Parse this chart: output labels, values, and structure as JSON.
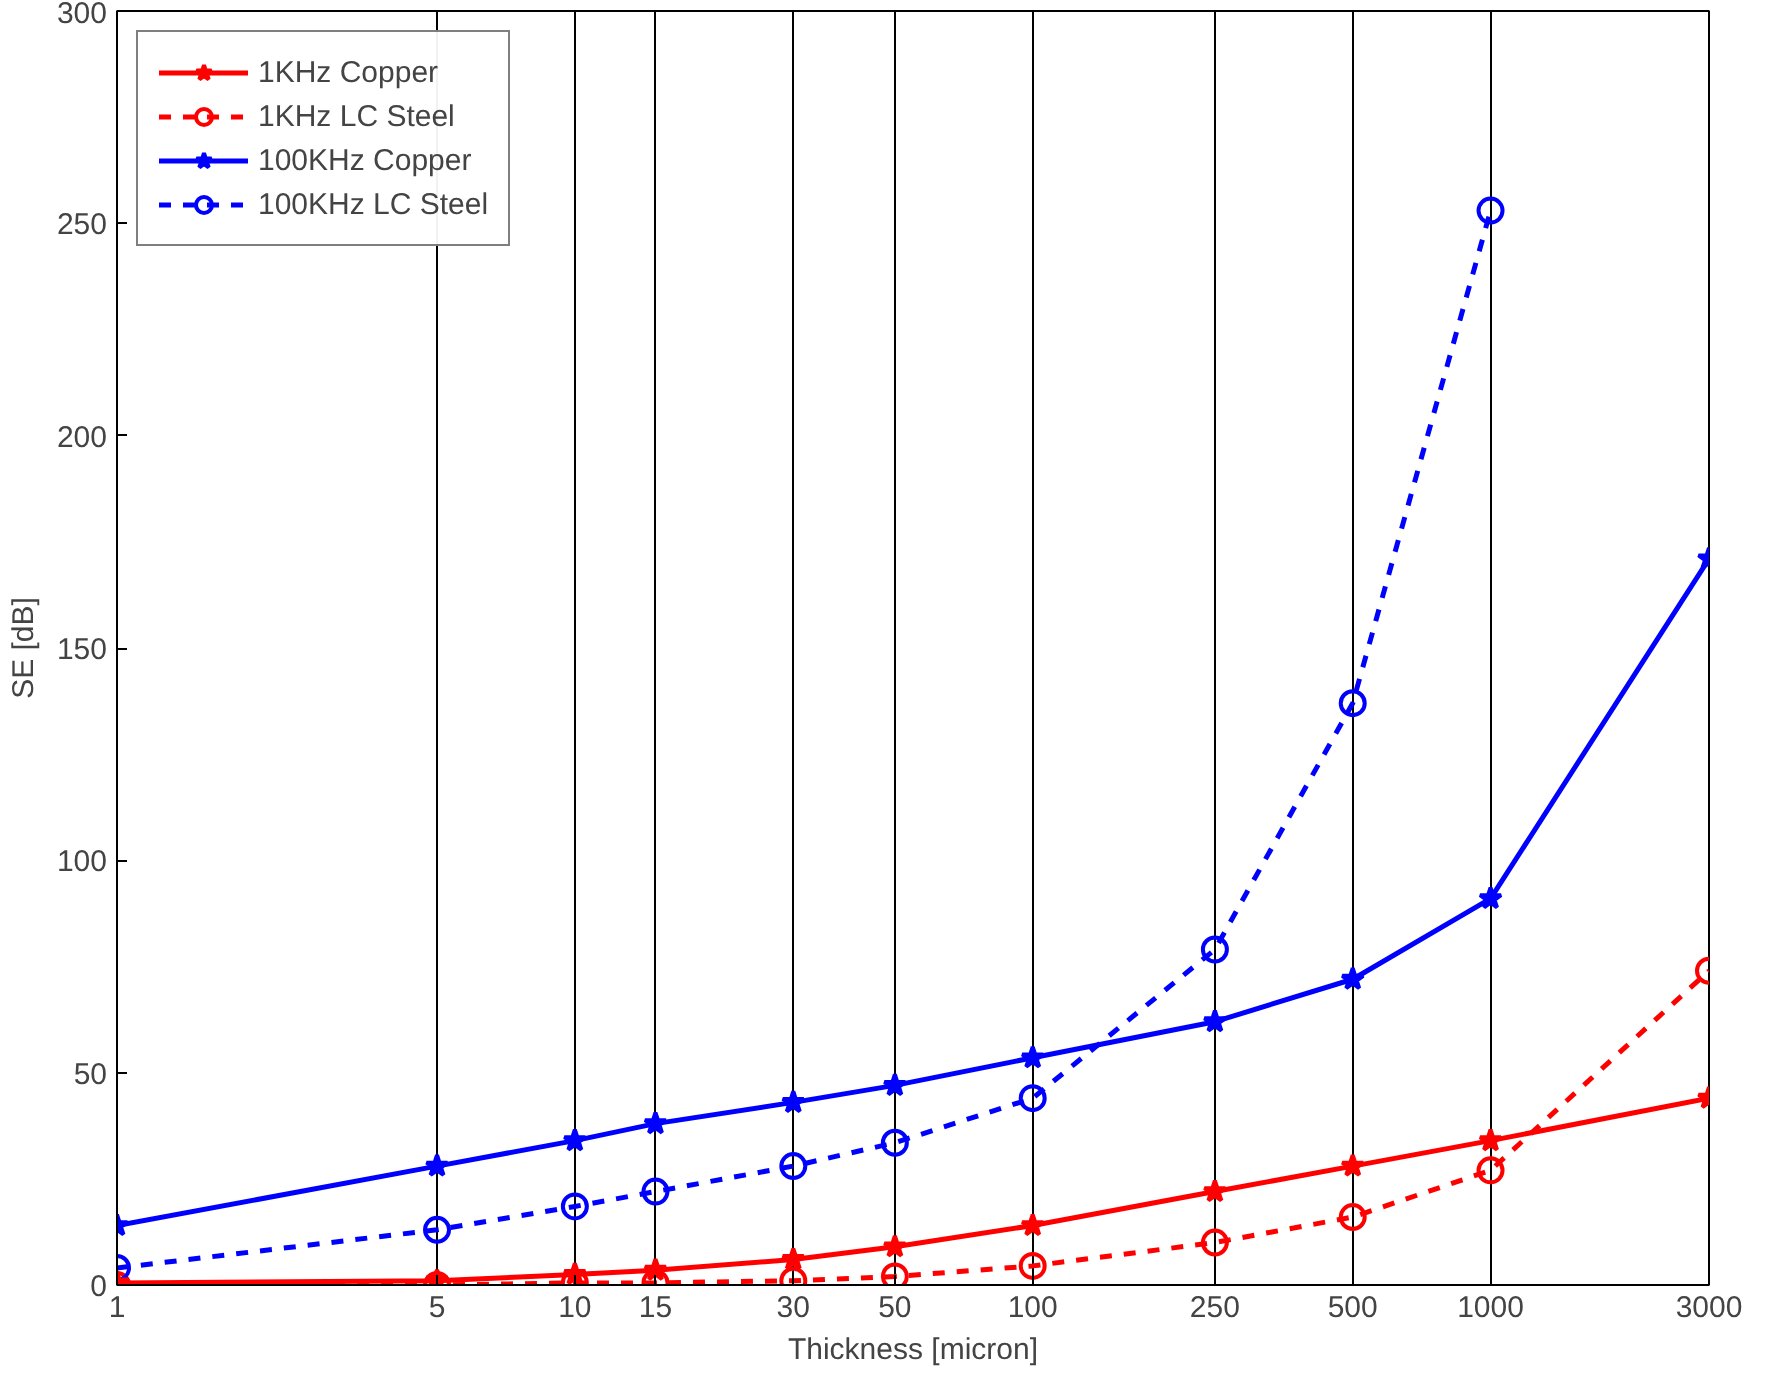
{
  "chart_data": {
    "type": "line",
    "xlabel": "Thickness [micron]",
    "ylabel": "SE [dB]",
    "x": [
      1,
      5,
      10,
      15,
      30,
      50,
      100,
      250,
      500,
      1000,
      3000
    ],
    "log": "x",
    "xlim": [
      1,
      3000
    ],
    "xticks": [
      1,
      5,
      10,
      15,
      30,
      50,
      100,
      250,
      500,
      1000,
      3000
    ],
    "ylim": [
      0,
      300
    ],
    "yticks": [
      0,
      50,
      100,
      150,
      200,
      250,
      300
    ],
    "grid": "x",
    "legend": "top left",
    "series": [
      {
        "name": "1KHz Copper",
        "color": "#ff0000",
        "marker": "star",
        "line_style": "solid",
        "values": [
          0.5,
          1,
          2.5,
          3.5,
          6,
          9,
          14,
          22,
          28,
          34,
          44
        ]
      },
      {
        "name": "1KHz LC Steel",
        "color": "#ff0000",
        "marker": "circle",
        "line_style": "dashed",
        "values": [
          0,
          0,
          0.5,
          0.5,
          1,
          2,
          4.5,
          10,
          16,
          27,
          74
        ]
      },
      {
        "name": "100KHz Copper",
        "color": "#0000ff",
        "marker": "star",
        "line_style": "solid",
        "values": [
          14,
          28,
          34,
          38,
          43,
          47,
          53.5,
          62,
          72,
          91,
          171
        ]
      },
      {
        "name": "100KHz LC Steel",
        "color": "#0000ff",
        "marker": "circle",
        "line_style": "dashed",
        "values": [
          4,
          13,
          18.5,
          22,
          28,
          33.5,
          44,
          79,
          137,
          253,
          null
        ]
      }
    ]
  }
}
